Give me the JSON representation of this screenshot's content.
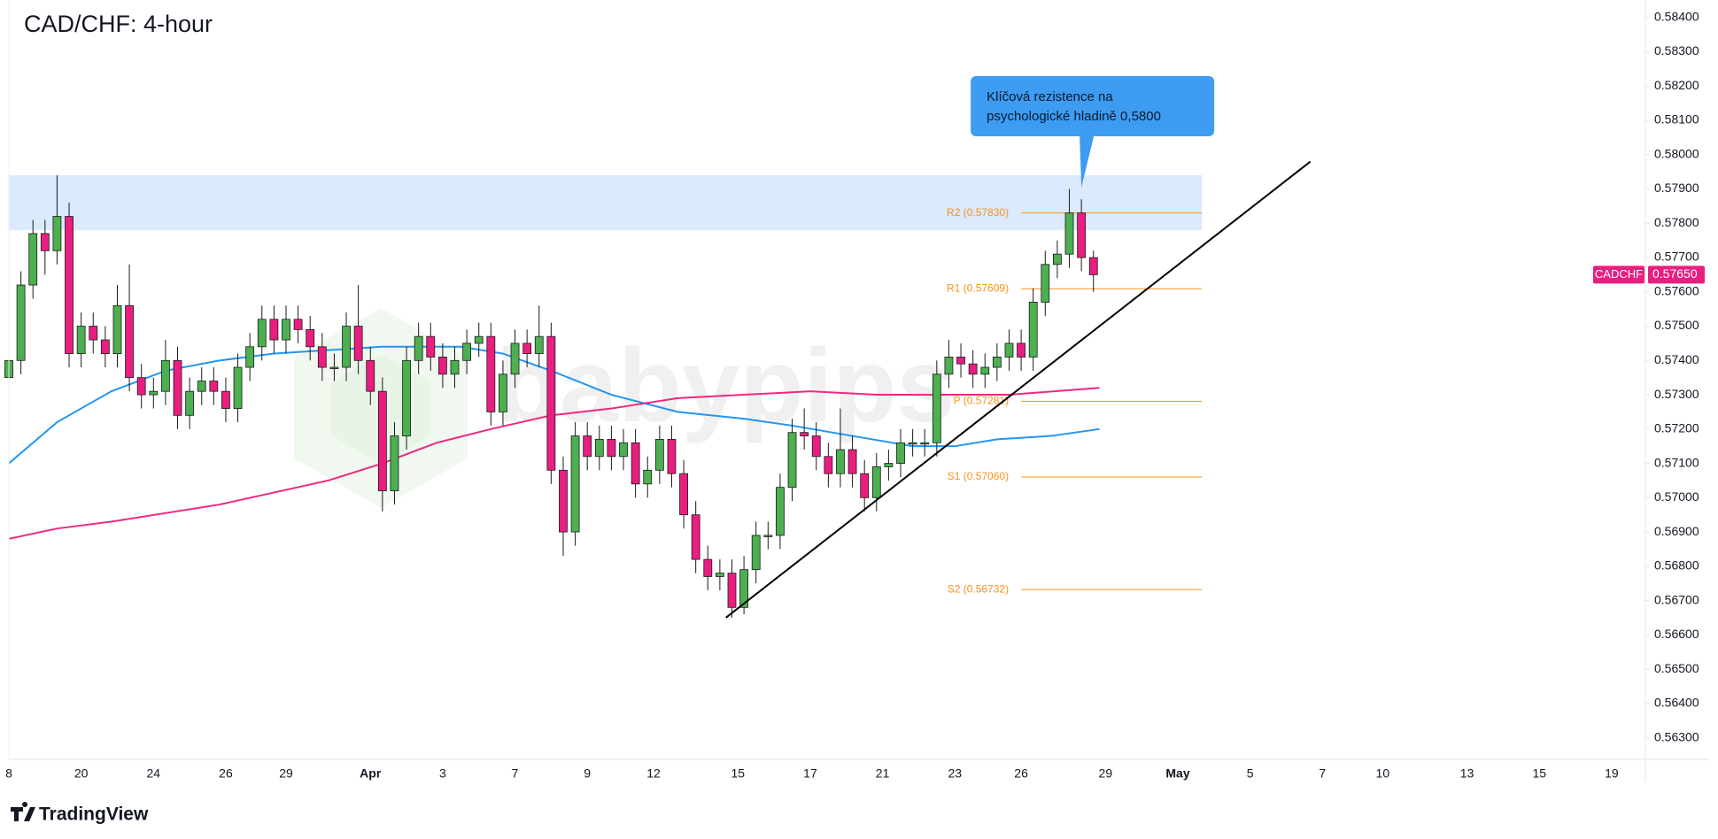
{
  "chart_data": {
    "type": "candlestick",
    "title": "CAD/CHF: 4-hour",
    "watermark": "babypips",
    "branding": "TradingView",
    "grid": false,
    "up_color": "#4caf50",
    "down_color": "#e91e80",
    "x": [
      0,
      2,
      4,
      6,
      8,
      10,
      12,
      14,
      16,
      18,
      20,
      22,
      24,
      26,
      28,
      30,
      32,
      34,
      36,
      38,
      40,
      42,
      44,
      46,
      48,
      50,
      52,
      54,
      56,
      58,
      60,
      62,
      64,
      66,
      68,
      70,
      72,
      74,
      76,
      78,
      80,
      82,
      84,
      86,
      88,
      90,
      92,
      94,
      96,
      98,
      100,
      102,
      104,
      106,
      108,
      110,
      112,
      114,
      116,
      118,
      120,
      122,
      124,
      126,
      128,
      130,
      132,
      134,
      136,
      138,
      140,
      142,
      144,
      146,
      148,
      150,
      152,
      154,
      156,
      158,
      160,
      162,
      164,
      166,
      168,
      170,
      172,
      174,
      176,
      178,
      180
    ],
    "open": [
      0.5735,
      0.574,
      0.5762,
      0.5777,
      0.5772,
      0.5782,
      0.5742,
      0.575,
      0.5746,
      0.5742,
      0.5756,
      0.5735,
      0.573,
      0.5731,
      0.574,
      0.5724,
      0.5731,
      0.5734,
      0.5731,
      0.5726,
      0.5738,
      0.5744,
      0.5752,
      0.5746,
      0.5752,
      0.5749,
      0.5744,
      0.5738,
      0.5738,
      0.575,
      0.574,
      0.5731,
      0.5702,
      0.5718,
      0.574,
      0.5747,
      0.5741,
      0.5736,
      0.574,
      0.5745,
      0.5747,
      0.5725,
      0.5736,
      0.5745,
      0.5742,
      0.5747,
      0.5708,
      0.569,
      0.5718,
      0.5712,
      0.5717,
      0.5712,
      0.5716,
      0.5704,
      0.5708,
      0.5717,
      0.5707,
      0.5695,
      0.5682,
      0.5677,
      0.5678,
      0.5668,
      0.5679,
      0.5689,
      0.5689,
      0.5703,
      0.5719,
      0.5718,
      0.5712,
      0.5707,
      0.5714,
      0.5707,
      0.57,
      0.5709,
      0.571,
      0.5716,
      0.5716,
      0.5716,
      0.5736,
      0.5741,
      0.5739,
      0.5736,
      0.5738,
      0.5741,
      0.5745,
      0.5741,
      0.5757,
      0.5768,
      0.5771,
      0.5783,
      0.577
    ],
    "high": [
      0.5744,
      0.5766,
      0.5781,
      0.5781,
      0.5794,
      0.5786,
      0.5754,
      0.5754,
      0.575,
      0.5762,
      0.5768,
      0.5739,
      0.5735,
      0.5746,
      0.5744,
      0.5735,
      0.5738,
      0.5738,
      0.5735,
      0.5742,
      0.5748,
      0.5756,
      0.5756,
      0.5756,
      0.5756,
      0.5753,
      0.5748,
      0.5742,
      0.5754,
      0.5762,
      0.5744,
      0.5735,
      0.5722,
      0.5744,
      0.5751,
      0.5751,
      0.5745,
      0.5744,
      0.5749,
      0.5751,
      0.5751,
      0.574,
      0.5749,
      0.5749,
      0.5756,
      0.5751,
      0.5712,
      0.5722,
      0.5722,
      0.5721,
      0.5721,
      0.572,
      0.572,
      0.5712,
      0.5721,
      0.5721,
      0.5711,
      0.5699,
      0.5686,
      0.5682,
      0.5682,
      0.5683,
      0.5693,
      0.5693,
      0.5707,
      0.5723,
      0.5726,
      0.5722,
      0.5716,
      0.5726,
      0.5718,
      0.5711,
      0.5713,
      0.5714,
      0.572,
      0.572,
      0.572,
      0.574,
      0.5746,
      0.5745,
      0.5743,
      0.5742,
      0.5745,
      0.5749,
      0.5749,
      0.5761,
      0.5772,
      0.5775,
      0.579,
      0.5787,
      0.5772
    ],
    "low": [
      0.5731,
      0.5736,
      0.5758,
      0.5765,
      0.5768,
      0.5738,
      0.5738,
      0.5742,
      0.5738,
      0.5738,
      0.5731,
      0.5726,
      0.5726,
      0.5727,
      0.572,
      0.572,
      0.5727,
      0.5727,
      0.5722,
      0.5722,
      0.5734,
      0.574,
      0.5742,
      0.5742,
      0.5745,
      0.574,
      0.5734,
      0.5734,
      0.5734,
      0.5736,
      0.5727,
      0.5696,
      0.5698,
      0.5714,
      0.5736,
      0.5737,
      0.5732,
      0.5732,
      0.5736,
      0.5741,
      0.5721,
      0.5721,
      0.5732,
      0.5738,
      0.5738,
      0.5704,
      0.5683,
      0.5686,
      0.5708,
      0.5708,
      0.5708,
      0.5708,
      0.57,
      0.57,
      0.5704,
      0.5703,
      0.5691,
      0.5678,
      0.5673,
      0.5673,
      0.5665,
      0.5666,
      0.5675,
      0.5685,
      0.5685,
      0.5699,
      0.5714,
      0.5708,
      0.5703,
      0.5703,
      0.5703,
      0.5696,
      0.5696,
      0.5705,
      0.5706,
      0.5712,
      0.5712,
      0.5712,
      0.5732,
      0.5735,
      0.5732,
      0.5732,
      0.5734,
      0.5737,
      0.5737,
      0.5737,
      0.5753,
      0.5764,
      0.5767,
      0.5766,
      0.576
    ],
    "close": [
      0.574,
      0.5762,
      0.5777,
      0.5772,
      0.5782,
      0.5742,
      0.575,
      0.5746,
      0.5742,
      0.5756,
      0.5735,
      0.573,
      0.5731,
      0.574,
      0.5724,
      0.5731,
      0.5734,
      0.5731,
      0.5726,
      0.5738,
      0.5744,
      0.5752,
      0.5746,
      0.5752,
      0.5749,
      0.5744,
      0.5738,
      0.5738,
      0.575,
      0.574,
      0.5731,
      0.5702,
      0.5718,
      0.574,
      0.5747,
      0.5741,
      0.5736,
      0.574,
      0.5745,
      0.5747,
      0.5725,
      0.5736,
      0.5745,
      0.5742,
      0.5747,
      0.5708,
      0.569,
      0.5718,
      0.5712,
      0.5717,
      0.5712,
      0.5716,
      0.5704,
      0.5708,
      0.5717,
      0.5707,
      0.5695,
      0.5682,
      0.5677,
      0.5678,
      0.5668,
      0.5679,
      0.5689,
      0.5689,
      0.5703,
      0.5719,
      0.5718,
      0.5712,
      0.5707,
      0.5714,
      0.5707,
      0.57,
      0.5709,
      0.571,
      0.5716,
      0.5716,
      0.5716,
      0.5736,
      0.5741,
      0.5739,
      0.5736,
      0.5738,
      0.5741,
      0.5745,
      0.5741,
      0.5757,
      0.5768,
      0.5771,
      0.5783,
      0.577,
      0.5765
    ],
    "xlim": [
      0,
      271.6
    ],
    "xticks": [
      {
        "value": 0,
        "label": "8"
      },
      {
        "value": 12,
        "label": "20"
      },
      {
        "value": 24,
        "label": "24"
      },
      {
        "value": 36,
        "label": "26"
      },
      {
        "value": 46,
        "label": "29"
      },
      {
        "value": 60,
        "label": "Apr"
      },
      {
        "value": 72,
        "label": "3"
      },
      {
        "value": 84,
        "label": "7"
      },
      {
        "value": 96,
        "label": "9"
      },
      {
        "value": 107,
        "label": "12"
      },
      {
        "value": 121,
        "label": "15"
      },
      {
        "value": 133,
        "label": "17"
      },
      {
        "value": 145,
        "label": "21"
      },
      {
        "value": 157,
        "label": "23"
      },
      {
        "value": 168,
        "label": "26"
      },
      {
        "value": 182,
        "label": "29"
      },
      {
        "value": 194,
        "label": "May"
      },
      {
        "value": 206,
        "label": "5"
      },
      {
        "value": 218,
        "label": "7"
      },
      {
        "value": 228,
        "label": "10"
      },
      {
        "value": 242,
        "label": "13"
      },
      {
        "value": 254,
        "label": "15"
      },
      {
        "value": 266,
        "label": "19"
      }
    ],
    "ylim": [
      0.56237,
      0.58451
    ],
    "yticks": [
      {
        "value": 0.563,
        "label": "0.56300"
      },
      {
        "value": 0.564,
        "label": "0.56400"
      },
      {
        "value": 0.565,
        "label": "0.56500"
      },
      {
        "value": 0.566,
        "label": "0.56600"
      },
      {
        "value": 0.567,
        "label": "0.56700"
      },
      {
        "value": 0.568,
        "label": "0.56800"
      },
      {
        "value": 0.569,
        "label": "0.56900"
      },
      {
        "value": 0.57,
        "label": "0.57000"
      },
      {
        "value": 0.571,
        "label": "0.57100"
      },
      {
        "value": 0.572,
        "label": "0.57200"
      },
      {
        "value": 0.573,
        "label": "0.57300"
      },
      {
        "value": 0.574,
        "label": "0.57400"
      },
      {
        "value": 0.575,
        "label": "0.57500"
      },
      {
        "value": 0.576,
        "label": "0.57600"
      },
      {
        "value": 0.577,
        "label": "0.57700"
      },
      {
        "value": 0.578,
        "label": "0.57800"
      },
      {
        "value": 0.579,
        "label": "0.57900"
      },
      {
        "value": 0.58,
        "label": "0.58000"
      },
      {
        "value": 0.581,
        "label": "0.58100"
      },
      {
        "value": 0.582,
        "label": "0.58200"
      },
      {
        "value": 0.583,
        "label": "0.58300"
      },
      {
        "value": 0.584,
        "label": "0.58400"
      }
    ],
    "moving_averages": [
      {
        "color": "#2196f3",
        "x": [
          0,
          8,
          17,
          26,
          35,
          44,
          53,
          62,
          75,
          82,
          90,
          100,
          111,
          122,
          130,
          140,
          150,
          157,
          164,
          173,
          181
        ],
        "values": [
          0.571,
          0.5722,
          0.5731,
          0.5737,
          0.574,
          0.5742,
          0.5743,
          0.5744,
          0.5744,
          0.5742,
          0.5737,
          0.573,
          0.5725,
          0.5723,
          0.5721,
          0.5718,
          0.5715,
          0.5715,
          0.5717,
          0.5718,
          0.572
        ]
      },
      {
        "color": "#f0287d",
        "x": [
          0,
          8,
          17,
          35,
          53,
          62,
          71,
          80,
          90,
          100,
          111,
          122,
          133,
          144,
          155,
          166,
          181
        ],
        "values": [
          0.5688,
          0.5691,
          0.5693,
          0.5698,
          0.5705,
          0.571,
          0.5716,
          0.572,
          0.5724,
          0.5726,
          0.5729,
          0.573,
          0.5731,
          0.573,
          0.573,
          0.573,
          0.5732
        ]
      }
    ],
    "zone": {
      "x": [
        0,
        198
      ],
      "y": [
        0.5778,
        0.5794
      ],
      "color": "#dbeafc"
    },
    "pivots": {
      "x": [
        168,
        198
      ],
      "color": "#f7931a",
      "levels": [
        {
          "label": "R2 (0.57830)",
          "value": 0.5783
        },
        {
          "label": "R1 (0.57609)",
          "value": 0.57609
        },
        {
          "label": "P (0.57281)",
          "value": 0.57281
        },
        {
          "label": "S1 (0.57060)",
          "value": 0.5706
        },
        {
          "label": "S2 (0.56732)",
          "value": 0.56732
        }
      ]
    },
    "trendline": {
      "x": [
        119,
        216
      ],
      "values": [
        0.5665,
        0.5798
      ],
      "color": "#000000"
    },
    "annotation": {
      "text": [
        "Klíčová rezistence na",
        "psychologické hladině 0,5800"
      ],
      "x": 178,
      "value": 0.57905,
      "color": "#3d9cf2"
    },
    "last_price": {
      "symbol": "CADCHF",
      "value": 0.5765,
      "label": "0.57650",
      "color": "#e91e80"
    }
  }
}
